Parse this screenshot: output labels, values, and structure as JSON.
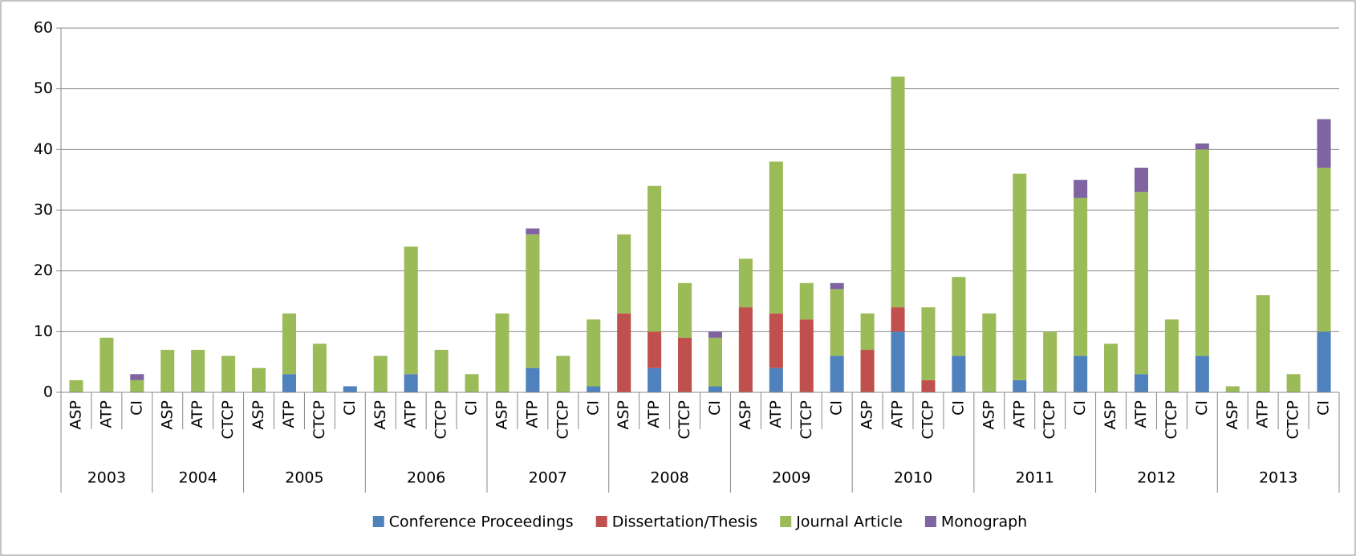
{
  "chart_data": {
    "type": "stacked_bar",
    "groups": [
      {
        "name": "2003",
        "categories": [
          "ASP",
          "ATP",
          "CI"
        ]
      },
      {
        "name": "2004",
        "categories": [
          "ASP",
          "ATP",
          "CTCP"
        ]
      },
      {
        "name": "2005",
        "categories": [
          "ASP",
          "ATP",
          "CTCP",
          "CI"
        ]
      },
      {
        "name": "2006",
        "categories": [
          "ASP",
          "ATP",
          "CTCP",
          "CI"
        ]
      },
      {
        "name": "2007",
        "categories": [
          "ASP",
          "ATP",
          "CTCP",
          "CI"
        ]
      },
      {
        "name": "2008",
        "categories": [
          "ASP",
          "ATP",
          "CTCP",
          "CI"
        ]
      },
      {
        "name": "2009",
        "categories": [
          "ASP",
          "ATP",
          "CTCP",
          "CI"
        ]
      },
      {
        "name": "2010",
        "categories": [
          "ASP",
          "ATP",
          "CTCP",
          "CI"
        ]
      },
      {
        "name": "2011",
        "categories": [
          "ASP",
          "ATP",
          "CTCP",
          "CI"
        ]
      },
      {
        "name": "2012",
        "categories": [
          "ASP",
          "ATP",
          "CTCP",
          "CI"
        ]
      },
      {
        "name": "2013",
        "categories": [
          "ASP",
          "ATP",
          "CTCP",
          "CI"
        ]
      }
    ],
    "series": [
      {
        "name": "Conference Proceedings",
        "color": "#4f81bd",
        "values": [
          0,
          0,
          0,
          0,
          0,
          0,
          0,
          3,
          0,
          1,
          0,
          3,
          0,
          0,
          0,
          4,
          0,
          1,
          0,
          4,
          0,
          1,
          0,
          4,
          0,
          6,
          0,
          10,
          0,
          6,
          0,
          2,
          0,
          6,
          0,
          3,
          0,
          6,
          0,
          0,
          0,
          10
        ]
      },
      {
        "name": "Dissertation/Thesis",
        "color": "#c0504d",
        "values": [
          0,
          0,
          0,
          0,
          0,
          0,
          0,
          0,
          0,
          0,
          0,
          0,
          0,
          0,
          0,
          0,
          0,
          0,
          13,
          6,
          9,
          0,
          14,
          9,
          12,
          0,
          7,
          4,
          2,
          0,
          0,
          0,
          0,
          0,
          0,
          0,
          0,
          0,
          0,
          0,
          0,
          0
        ]
      },
      {
        "name": "Journal Article",
        "color": "#9bbb59",
        "values": [
          2,
          9,
          2,
          7,
          7,
          6,
          4,
          10,
          8,
          0,
          6,
          21,
          7,
          3,
          13,
          22,
          6,
          11,
          13,
          24,
          9,
          8,
          8,
          25,
          6,
          11,
          6,
          38,
          12,
          13,
          13,
          34,
          10,
          26,
          8,
          30,
          12,
          34,
          1,
          16,
          3,
          27
        ]
      },
      {
        "name": "Monograph",
        "color": "#8064a2",
        "values": [
          0,
          0,
          1,
          0,
          0,
          0,
          0,
          0,
          0,
          0,
          0,
          0,
          0,
          0,
          0,
          1,
          0,
          0,
          0,
          0,
          0,
          1,
          0,
          0,
          0,
          1,
          0,
          0,
          0,
          0,
          0,
          0,
          0,
          3,
          0,
          4,
          0,
          1,
          0,
          0,
          0,
          8
        ]
      }
    ],
    "ylim": [
      0,
      60
    ],
    "yticks": [
      0,
      10,
      20,
      30,
      40,
      50,
      60
    ],
    "grid": true,
    "legend": "bottom"
  }
}
